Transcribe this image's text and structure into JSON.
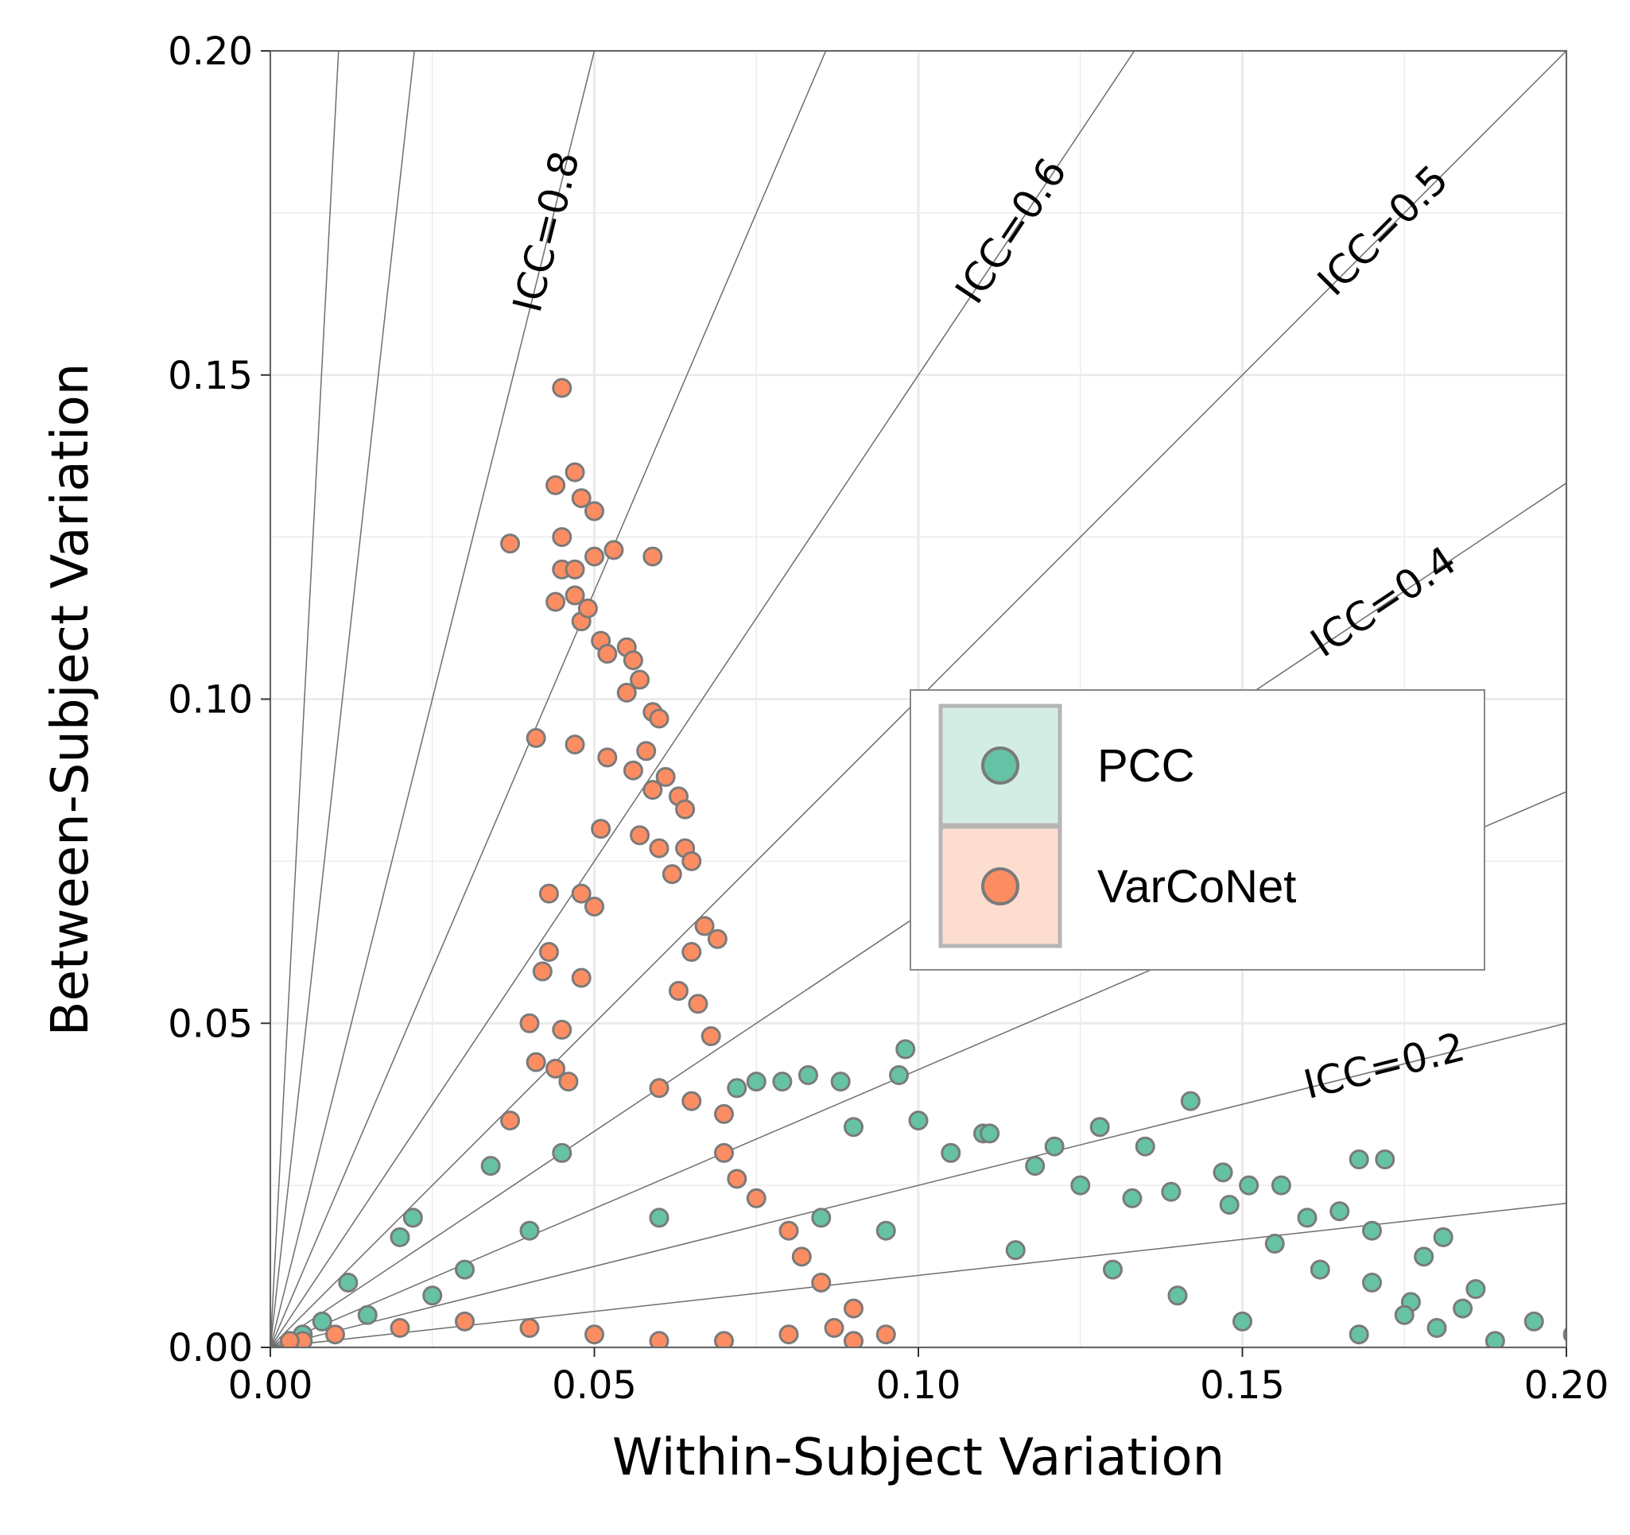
{
  "chart_data": {
    "type": "scatter",
    "title": "",
    "xlabel": "Within-Subject Variation",
    "ylabel": "Between-Subject Variation",
    "xlim": [
      0,
      0.2
    ],
    "ylim": [
      0,
      0.2
    ],
    "xticks": [
      "0.00",
      "0.05",
      "0.10",
      "0.15",
      "0.20"
    ],
    "yticks": [
      "0.00",
      "0.05",
      "0.10",
      "0.15",
      "0.20"
    ],
    "grid": true,
    "legend_position": "center-right",
    "icc_reference_lines": [
      {
        "label": "",
        "icc": 0.95
      },
      {
        "label": "",
        "icc": 0.9
      },
      {
        "label": "ICC=0.8",
        "icc": 0.8
      },
      {
        "label": "",
        "icc": 0.7
      },
      {
        "label": "ICC=0.6",
        "icc": 0.6
      },
      {
        "label": "ICC=0.5",
        "icc": 0.5
      },
      {
        "label": "ICC=0.4",
        "icc": 0.4
      },
      {
        "label": "",
        "icc": 0.3
      },
      {
        "label": "ICC=0.2",
        "icc": 0.2
      },
      {
        "label": "",
        "icc": 0.1
      }
    ],
    "series": [
      {
        "name": "PCC",
        "color": "#66C2A5",
        "points": [
          [
            0.098,
            0.046
          ],
          [
            0.083,
            0.042
          ],
          [
            0.079,
            0.041
          ],
          [
            0.075,
            0.041
          ],
          [
            0.072,
            0.04
          ],
          [
            0.088,
            0.041
          ],
          [
            0.097,
            0.042
          ],
          [
            0.142,
            0.038
          ],
          [
            0.1,
            0.035
          ],
          [
            0.11,
            0.033
          ],
          [
            0.111,
            0.033
          ],
          [
            0.128,
            0.034
          ],
          [
            0.121,
            0.031
          ],
          [
            0.135,
            0.031
          ],
          [
            0.168,
            0.029
          ],
          [
            0.172,
            0.029
          ],
          [
            0.147,
            0.027
          ],
          [
            0.151,
            0.025
          ],
          [
            0.156,
            0.025
          ],
          [
            0.165,
            0.021
          ],
          [
            0.17,
            0.018
          ],
          [
            0.181,
            0.017
          ],
          [
            0.178,
            0.014
          ],
          [
            0.186,
            0.009
          ],
          [
            0.184,
            0.006
          ],
          [
            0.195,
            0.004
          ],
          [
            0.201,
            0.002
          ],
          [
            0.189,
            0.001
          ],
          [
            0.18,
            0.003
          ],
          [
            0.176,
            0.007
          ],
          [
            0.16,
            0.02
          ],
          [
            0.148,
            0.022
          ],
          [
            0.139,
            0.024
          ],
          [
            0.034,
            0.028
          ],
          [
            0.02,
            0.017
          ],
          [
            0.022,
            0.02
          ],
          [
            0.012,
            0.01
          ],
          [
            0.008,
            0.004
          ],
          [
            0.045,
            0.03
          ],
          [
            0.06,
            0.02
          ],
          [
            0.09,
            0.034
          ],
          [
            0.105,
            0.03
          ],
          [
            0.118,
            0.028
          ],
          [
            0.125,
            0.025
          ],
          [
            0.133,
            0.023
          ],
          [
            0.155,
            0.016
          ],
          [
            0.162,
            0.012
          ],
          [
            0.17,
            0.01
          ],
          [
            0.175,
            0.005
          ],
          [
            0.168,
            0.002
          ],
          [
            0.15,
            0.004
          ],
          [
            0.14,
            0.008
          ],
          [
            0.13,
            0.012
          ],
          [
            0.115,
            0.015
          ],
          [
            0.095,
            0.018
          ],
          [
            0.085,
            0.02
          ],
          [
            0.03,
            0.012
          ],
          [
            0.04,
            0.018
          ],
          [
            0.025,
            0.008
          ],
          [
            0.015,
            0.005
          ],
          [
            0.005,
            0.002
          ]
        ]
      },
      {
        "name": "VarCoNet",
        "color": "#FC8D62",
        "points": [
          [
            0.045,
            0.148
          ],
          [
            0.047,
            0.135
          ],
          [
            0.044,
            0.133
          ],
          [
            0.048,
            0.131
          ],
          [
            0.05,
            0.129
          ],
          [
            0.037,
            0.124
          ],
          [
            0.045,
            0.125
          ],
          [
            0.053,
            0.123
          ],
          [
            0.059,
            0.122
          ],
          [
            0.05,
            0.122
          ],
          [
            0.045,
            0.12
          ],
          [
            0.047,
            0.12
          ],
          [
            0.047,
            0.116
          ],
          [
            0.044,
            0.115
          ],
          [
            0.048,
            0.112
          ],
          [
            0.049,
            0.114
          ],
          [
            0.051,
            0.109
          ],
          [
            0.052,
            0.107
          ],
          [
            0.055,
            0.108
          ],
          [
            0.056,
            0.106
          ],
          [
            0.057,
            0.103
          ],
          [
            0.055,
            0.101
          ],
          [
            0.059,
            0.098
          ],
          [
            0.06,
            0.097
          ],
          [
            0.041,
            0.094
          ],
          [
            0.047,
            0.093
          ],
          [
            0.052,
            0.091
          ],
          [
            0.058,
            0.092
          ],
          [
            0.056,
            0.089
          ],
          [
            0.061,
            0.088
          ],
          [
            0.059,
            0.086
          ],
          [
            0.063,
            0.085
          ],
          [
            0.064,
            0.083
          ],
          [
            0.051,
            0.08
          ],
          [
            0.057,
            0.079
          ],
          [
            0.06,
            0.077
          ],
          [
            0.064,
            0.077
          ],
          [
            0.065,
            0.075
          ],
          [
            0.062,
            0.073
          ],
          [
            0.043,
            0.07
          ],
          [
            0.048,
            0.07
          ],
          [
            0.05,
            0.068
          ],
          [
            0.067,
            0.065
          ],
          [
            0.069,
            0.063
          ],
          [
            0.043,
            0.061
          ],
          [
            0.065,
            0.061
          ],
          [
            0.042,
            0.058
          ],
          [
            0.048,
            0.057
          ],
          [
            0.063,
            0.055
          ],
          [
            0.066,
            0.053
          ],
          [
            0.04,
            0.05
          ],
          [
            0.045,
            0.049
          ],
          [
            0.068,
            0.048
          ],
          [
            0.041,
            0.044
          ],
          [
            0.044,
            0.043
          ],
          [
            0.046,
            0.041
          ],
          [
            0.037,
            0.035
          ],
          [
            0.06,
            0.04
          ],
          [
            0.065,
            0.038
          ],
          [
            0.07,
            0.036
          ],
          [
            0.07,
            0.03
          ],
          [
            0.072,
            0.026
          ],
          [
            0.075,
            0.023
          ],
          [
            0.08,
            0.018
          ],
          [
            0.082,
            0.014
          ],
          [
            0.085,
            0.01
          ],
          [
            0.09,
            0.006
          ],
          [
            0.087,
            0.003
          ],
          [
            0.095,
            0.002
          ],
          [
            0.09,
            0.001
          ],
          [
            0.08,
            0.002
          ],
          [
            0.07,
            0.001
          ],
          [
            0.06,
            0.001
          ],
          [
            0.05,
            0.002
          ],
          [
            0.04,
            0.003
          ],
          [
            0.03,
            0.004
          ],
          [
            0.02,
            0.003
          ],
          [
            0.01,
            0.002
          ],
          [
            0.005,
            0.001
          ],
          [
            0.003,
            0.001
          ]
        ]
      }
    ]
  }
}
